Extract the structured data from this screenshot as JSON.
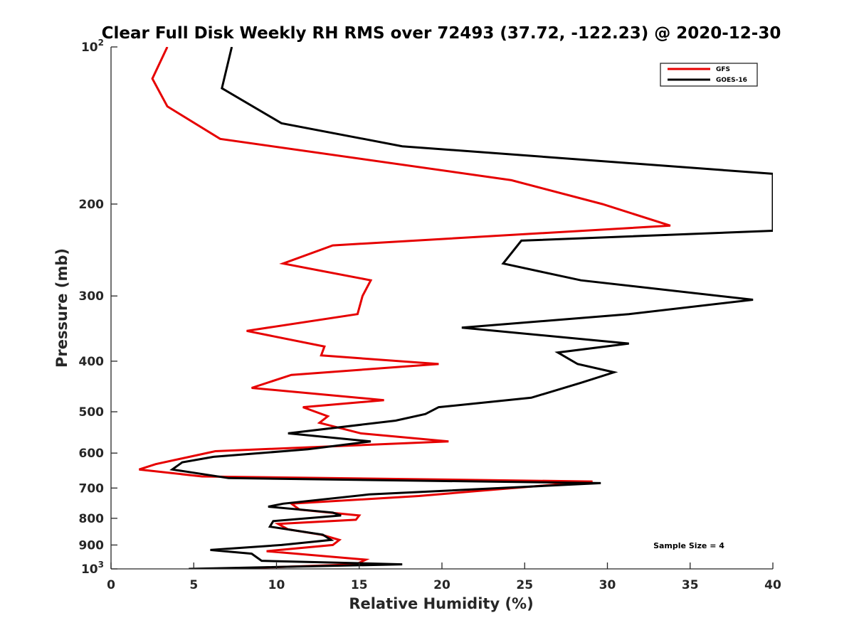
{
  "chart_data": {
    "type": "line",
    "title": "Clear Full Disk Weekly RH RMS over 72493 (37.72, -122.23) @ 2020-12-30",
    "xlabel": "Relative Humidity (%)",
    "ylabel": "Pressure (mb)",
    "xlim": [
      0,
      40
    ],
    "ylim": [
      100,
      1000
    ],
    "y_scale": "log",
    "y_reversed": true,
    "grid": false,
    "legend_position": "top-right",
    "annotation": "Sample Size = 4",
    "x_ticks": [
      "0",
      "5",
      "10",
      "15",
      "20",
      "25",
      "30",
      "35",
      "40"
    ],
    "y_ticks": [
      {
        "value": 100,
        "base": "10",
        "exp": "2"
      },
      {
        "value": 200,
        "base": "200",
        "exp": ""
      },
      {
        "value": 300,
        "base": "300",
        "exp": ""
      },
      {
        "value": 400,
        "base": "400",
        "exp": ""
      },
      {
        "value": 500,
        "base": "500",
        "exp": ""
      },
      {
        "value": 600,
        "base": "600",
        "exp": ""
      },
      {
        "value": 700,
        "base": "700",
        "exp": ""
      },
      {
        "value": 800,
        "base": "800",
        "exp": ""
      },
      {
        "value": 900,
        "base": "900",
        "exp": ""
      },
      {
        "value": 1000,
        "base": "10",
        "exp": "3"
      }
    ],
    "series": [
      {
        "name": "GFS",
        "color": "#e60000",
        "points": [
          [
            3.4,
            100
          ],
          [
            2.5,
            115
          ],
          [
            3.4,
            130
          ],
          [
            6.6,
            150
          ],
          [
            24.2,
            180
          ],
          [
            29.7,
            200
          ],
          [
            33.8,
            220
          ],
          [
            13.4,
            240
          ],
          [
            10.4,
            260
          ],
          [
            15.7,
            280
          ],
          [
            15.2,
            300
          ],
          [
            14.9,
            325
          ],
          [
            8.2,
            350
          ],
          [
            12.9,
            375
          ],
          [
            12.7,
            390
          ],
          [
            19.8,
            405
          ],
          [
            10.9,
            425
          ],
          [
            8.5,
            450
          ],
          [
            16.5,
            475
          ],
          [
            11.6,
            490
          ],
          [
            13.1,
            510
          ],
          [
            12.6,
            525
          ],
          [
            15.1,
            550
          ],
          [
            20.4,
            570
          ],
          [
            6.3,
            595
          ],
          [
            2.7,
            630
          ],
          [
            1.7,
            645
          ],
          [
            5.5,
            665
          ],
          [
            29.1,
            680
          ],
          [
            22.0,
            710
          ],
          [
            18.6,
            725
          ],
          [
            10.9,
            750
          ],
          [
            11.4,
            770
          ],
          [
            15.0,
            790
          ],
          [
            14.8,
            805
          ],
          [
            10.1,
            820
          ],
          [
            10.7,
            840
          ],
          [
            12.7,
            860
          ],
          [
            13.8,
            880
          ],
          [
            13.4,
            900
          ],
          [
            9.4,
            925
          ],
          [
            15.4,
            960
          ],
          [
            14.8,
            980
          ],
          [
            6.8,
            1000
          ]
        ]
      },
      {
        "name": "GOES-16",
        "color": "#000000",
        "points": [
          [
            7.3,
            100
          ],
          [
            6.7,
            120
          ],
          [
            10.3,
            140
          ],
          [
            17.6,
            155
          ],
          [
            40.0,
            175
          ],
          [
            40.0,
            225
          ],
          [
            24.8,
            235
          ],
          [
            23.7,
            260
          ],
          [
            28.4,
            280
          ],
          [
            38.8,
            305
          ],
          [
            31.3,
            325
          ],
          [
            21.2,
            345
          ],
          [
            31.3,
            370
          ],
          [
            27.0,
            385
          ],
          [
            28.2,
            405
          ],
          [
            30.4,
            420
          ],
          [
            28.4,
            440
          ],
          [
            25.4,
            470
          ],
          [
            19.8,
            490
          ],
          [
            19.0,
            505
          ],
          [
            17.2,
            520
          ],
          [
            10.7,
            550
          ],
          [
            15.7,
            570
          ],
          [
            11.9,
            590
          ],
          [
            6.2,
            610
          ],
          [
            4.3,
            625
          ],
          [
            3.7,
            645
          ],
          [
            7.1,
            670
          ],
          [
            29.6,
            685
          ],
          [
            15.6,
            720
          ],
          [
            10.4,
            750
          ],
          [
            9.5,
            760
          ],
          [
            13.4,
            780
          ],
          [
            13.9,
            790
          ],
          [
            9.8,
            810
          ],
          [
            9.6,
            830
          ],
          [
            12.8,
            860
          ],
          [
            13.3,
            880
          ],
          [
            10.3,
            900
          ],
          [
            6.0,
            920
          ],
          [
            8.5,
            935
          ],
          [
            9.1,
            965
          ],
          [
            17.6,
            980
          ],
          [
            4.7,
            1000
          ]
        ]
      }
    ]
  }
}
